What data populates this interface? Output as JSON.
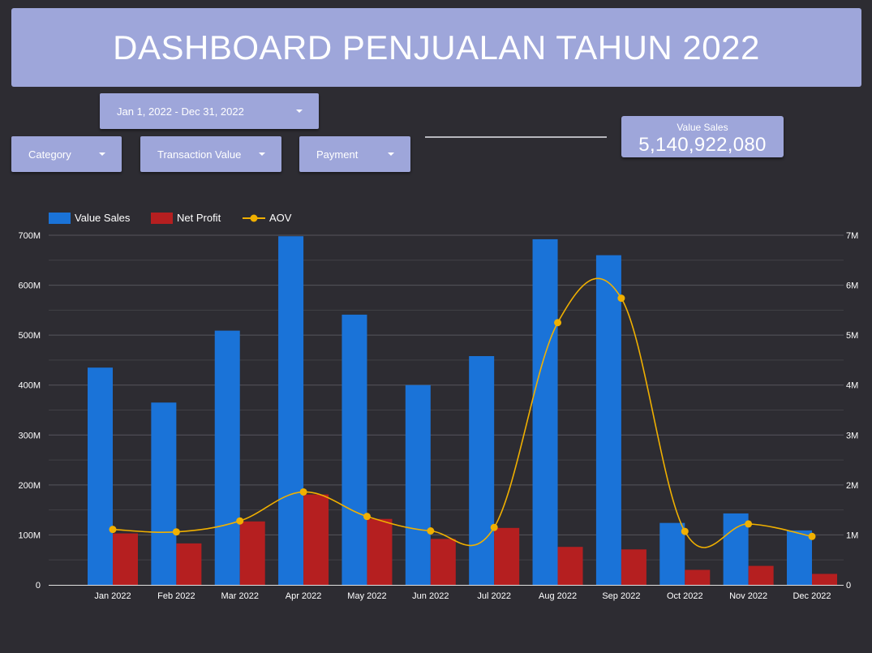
{
  "header": {
    "title": "DASHBOARD PENJUALAN TAHUN 2022"
  },
  "filters": {
    "date_range": "Jan 1, 2022 - Dec 31, 2022",
    "category": "Category",
    "transaction_value": "Transaction Value",
    "payment": "Payment"
  },
  "scorecard": {
    "label": "Value Sales",
    "value": "5,140,922,080"
  },
  "chart_data": {
    "type": "bar",
    "categories": [
      "Jan 2022",
      "Feb 2022",
      "Mar 2022",
      "Apr 2022",
      "May 2022",
      "Jun 2022",
      "Jul 2022",
      "Aug 2022",
      "Sep 2022",
      "Oct 2022",
      "Nov 2022",
      "Dec 2022"
    ],
    "series": [
      {
        "name": "Value Sales",
        "kind": "bar",
        "axis": "left",
        "color": "#1a73d8",
        "values": [
          435000000,
          365000000,
          509000000,
          698000000,
          541000000,
          400000000,
          458000000,
          692000000,
          660000000,
          124000000,
          143000000,
          109000000
        ]
      },
      {
        "name": "Net Profit",
        "kind": "bar",
        "axis": "left",
        "color": "#b51f20",
        "values": [
          103000000,
          83000000,
          127000000,
          181000000,
          132000000,
          92000000,
          114000000,
          76000000,
          71000000,
          30000000,
          38000000,
          22000000
        ]
      },
      {
        "name": "AOV",
        "kind": "line",
        "axis": "right",
        "color": "#f0b000",
        "values": [
          1110000,
          1060000,
          1280000,
          1860000,
          1370000,
          1080000,
          1150000,
          5250000,
          5740000,
          1070000,
          1220000,
          970000
        ]
      }
    ],
    "ylim": [
      0,
      700000000
    ],
    "yticks": [
      "0",
      "100M",
      "200M",
      "300M",
      "400M",
      "500M",
      "600M",
      "700M"
    ],
    "y2lim": [
      0,
      7000000
    ],
    "y2ticks": [
      "0",
      "1M",
      "2M",
      "3M",
      "4M",
      "5M",
      "6M",
      "7M"
    ],
    "grid": true,
    "legend": "top-left"
  }
}
